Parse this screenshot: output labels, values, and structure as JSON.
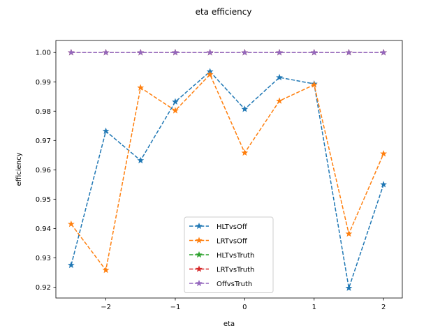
{
  "chart_data": {
    "type": "line",
    "title": "eta efficiency",
    "xlabel": "eta",
    "ylabel": "efficiency",
    "xlim": [
      -2.72,
      2.27
    ],
    "ylim": [
      0.9163,
      1.0041
    ],
    "xticks": [
      -2,
      -1,
      0,
      1,
      2
    ],
    "xtick_labels": [
      "−2",
      "−1",
      "0",
      "1",
      "2"
    ],
    "yticks": [
      0.92,
      0.93,
      0.94,
      0.95,
      0.96,
      0.97,
      0.98,
      0.99,
      1.0
    ],
    "ytick_labels": [
      "0.92",
      "0.93",
      "0.94",
      "0.95",
      "0.96",
      "0.97",
      "0.98",
      "0.99",
      "1.00"
    ],
    "grid": false,
    "legend_position": "lower center",
    "series": [
      {
        "name": "HLTvsOff",
        "color": "#1f77b4",
        "linestyle": "dashed",
        "marker": "star",
        "x": [
          -2.5,
          -2.0,
          -1.5,
          -1.0,
          -0.5,
          0.0,
          0.5,
          1.0,
          1.5,
          2.0
        ],
        "y": [
          0.9275,
          0.9732,
          0.9632,
          0.9832,
          0.9935,
          0.9807,
          0.9915,
          0.9893,
          0.9197,
          0.955
        ]
      },
      {
        "name": "LRTvsOff",
        "color": "#ff7f0e",
        "linestyle": "dashed",
        "marker": "star",
        "x": [
          -2.5,
          -2.0,
          -1.5,
          -1.0,
          -0.5,
          0.0,
          0.5,
          1.0,
          1.5,
          2.0
        ],
        "y": [
          0.9415,
          0.9258,
          0.988,
          0.9802,
          0.9925,
          0.9658,
          0.9835,
          0.989,
          0.9382,
          0.9655
        ]
      },
      {
        "name": "HLTvsTruth",
        "color": "#2ca02c",
        "linestyle": "dashed",
        "marker": "star",
        "x": [
          -2.5,
          -2.0,
          -1.5,
          -1.0,
          -0.5,
          0.0,
          0.5,
          1.0,
          1.5,
          2.0
        ],
        "y": [
          1.0,
          1.0,
          1.0,
          1.0,
          1.0,
          1.0,
          1.0,
          1.0,
          1.0,
          1.0
        ]
      },
      {
        "name": "LRTvsTruth",
        "color": "#d62728",
        "linestyle": "dashed",
        "marker": "star",
        "x": [
          -2.5,
          -2.0,
          -1.5,
          -1.0,
          -0.5,
          0.0,
          0.5,
          1.0,
          1.5,
          2.0
        ],
        "y": [
          1.0,
          1.0,
          1.0,
          1.0,
          1.0,
          1.0,
          1.0,
          1.0,
          1.0,
          1.0
        ]
      },
      {
        "name": "OffvsTruth",
        "color": "#9467bd",
        "linestyle": "dashed",
        "marker": "star",
        "x": [
          -2.5,
          -2.0,
          -1.5,
          -1.0,
          -0.5,
          0.0,
          0.5,
          1.0,
          1.5,
          2.0
        ],
        "y": [
          1.0,
          1.0,
          1.0,
          1.0,
          1.0,
          1.0,
          1.0,
          1.0,
          1.0,
          1.0
        ]
      }
    ]
  }
}
